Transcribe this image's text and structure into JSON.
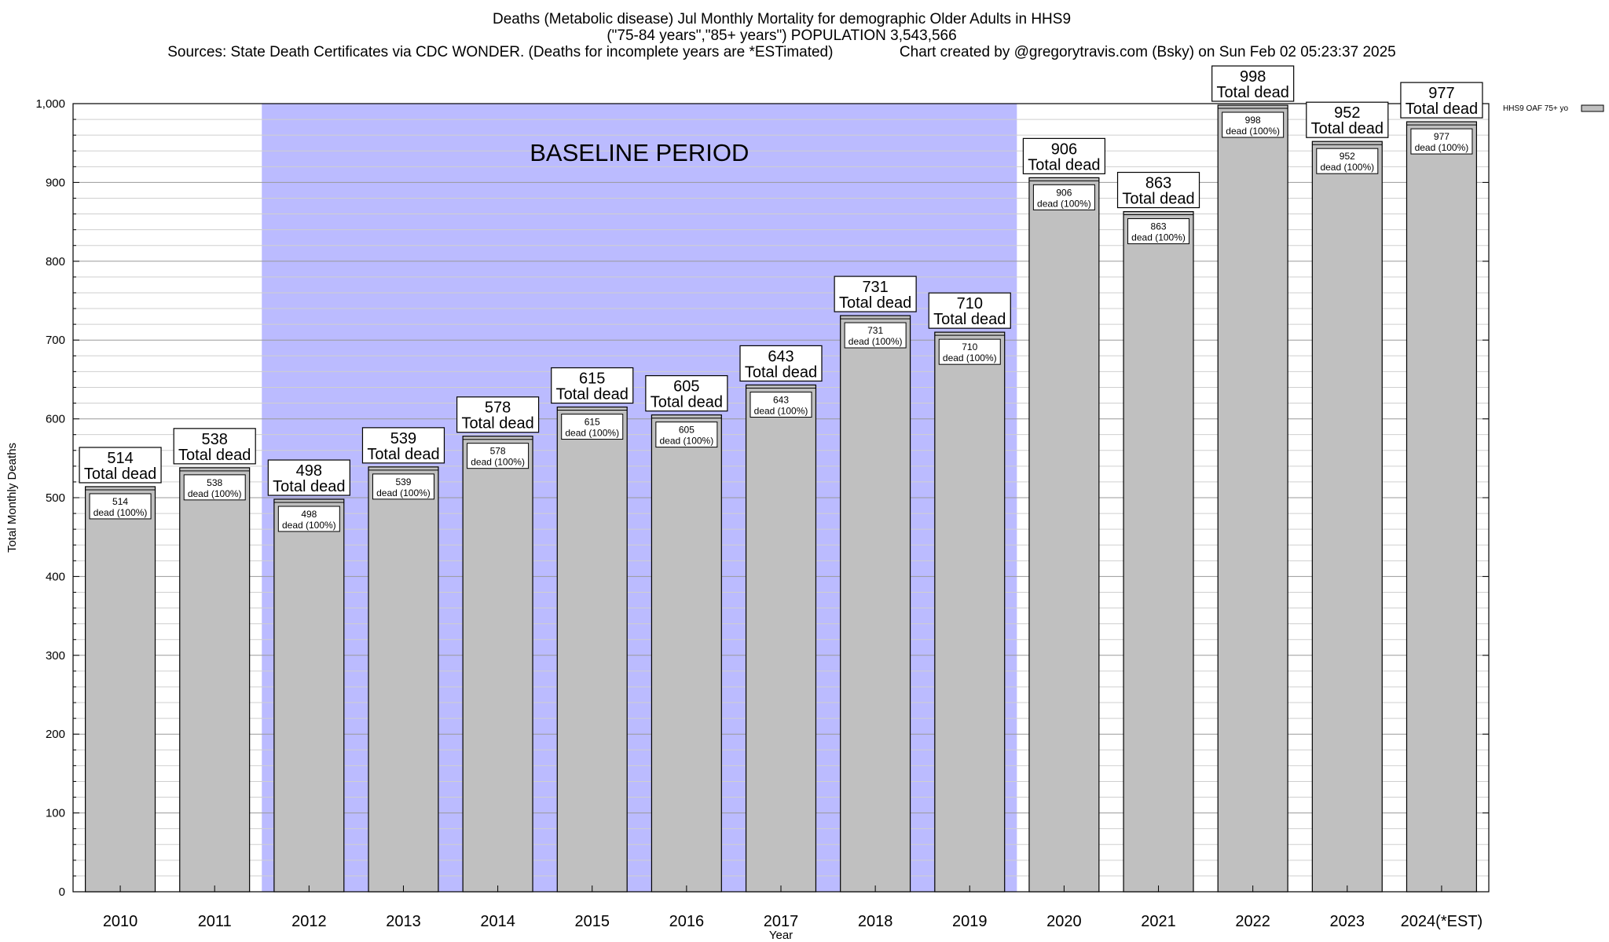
{
  "header": {
    "title_line1": "Deaths (Metabolic disease) Jul Monthly Mortality for demographic Older Adults in HHS9",
    "title_line2": "(\"75-84 years\",\"85+ years\") POPULATION 3,543,566",
    "title_line3": "Sources: State Death Certificates via CDC WONDER. (Deaths for incomplete years are *ESTimated)                Chart created by @gregorytravis.com (Bsky) on Sun Feb 02 05:23:37 2025"
  },
  "chart_data": {
    "type": "bar",
    "xlabel": "Year",
    "ylabel": "Total Monthly Deaths",
    "ylim": [
      0,
      1000
    ],
    "yticks": [
      0,
      100,
      200,
      300,
      400,
      500,
      600,
      700,
      800,
      900,
      1000
    ],
    "ytick_labels": [
      "0",
      "100",
      "200",
      "300",
      "400",
      "500",
      "600",
      "700",
      "800",
      "900",
      "1,000"
    ],
    "minor_grid_step": 20,
    "grid": true,
    "categories": [
      "2010",
      "2011",
      "2012",
      "2013",
      "2014",
      "2015",
      "2016",
      "2017",
      "2018",
      "2019",
      "2020",
      "2021",
      "2022",
      "2023",
      "2024(*EST)"
    ],
    "series": [
      {
        "name": "HHS9 OAF 75+ yo",
        "values": [
          514,
          538,
          498,
          539,
          578,
          615,
          605,
          643,
          731,
          710,
          906,
          863,
          998,
          952,
          977
        ],
        "color": "#c0c0c0"
      }
    ],
    "total_label_suffix": "Total dead",
    "inner_label_suffix": "dead (100%)",
    "baseline": {
      "label": "BASELINE PERIOD",
      "start": "2012",
      "end": "2019",
      "color": "#bbbbff"
    },
    "legend_position": "top-right"
  }
}
